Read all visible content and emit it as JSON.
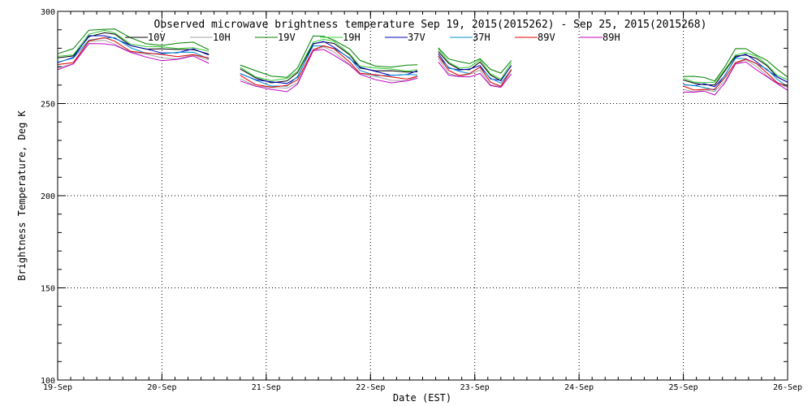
{
  "chart_data": {
    "type": "line",
    "title": "Observed microwave brightness temperature Sep 19, 2015(2015262) - Sep 25, 2015(2015268)",
    "xlabel": "Date (EST)",
    "ylabel": "Brightness Temperature, Deg K",
    "xlim": [
      0,
      7
    ],
    "ylim": [
      100,
      300
    ],
    "x_ticks": [
      {
        "x": 0,
        "label": "19-Sep"
      },
      {
        "x": 1,
        "label": "20-Sep"
      },
      {
        "x": 2,
        "label": "21-Sep"
      },
      {
        "x": 3,
        "label": "22-Sep"
      },
      {
        "x": 4,
        "label": "23-Sep"
      },
      {
        "x": 5,
        "label": "24-Sep"
      },
      {
        "x": 6,
        "label": "25-Sep"
      },
      {
        "x": 7,
        "label": "26-Sep"
      }
    ],
    "y_ticks": [
      {
        "y": 100,
        "label": "100"
      },
      {
        "y": 150,
        "label": "150"
      },
      {
        "y": 200,
        "label": "200"
      },
      {
        "y": 250,
        "label": "250"
      },
      {
        "y": 300,
        "label": "300"
      }
    ],
    "grid": true,
    "legend_position": "top",
    "base_curve": {
      "x": [
        0.0,
        0.15,
        0.3,
        0.45,
        0.55,
        0.7,
        0.85,
        1.0,
        1.15,
        1.3,
        1.45,
        1.75,
        1.9,
        2.05,
        2.2,
        2.3,
        2.45,
        2.55,
        2.65,
        2.8,
        2.9,
        3.05,
        3.2,
        3.35,
        3.45,
        3.65,
        3.75,
        3.85,
        3.95,
        4.05,
        4.15,
        4.25,
        4.35,
        6.0,
        6.1,
        6.2,
        6.3,
        6.4,
        6.5,
        6.6,
        6.7,
        6.8,
        6.9,
        7.0
      ],
      "y": [
        273,
        275,
        286,
        287,
        286,
        281,
        279,
        278,
        278,
        279,
        276,
        267,
        263,
        261,
        261,
        265,
        282,
        283,
        281,
        275,
        269,
        267,
        266,
        266,
        267,
        277,
        270,
        268,
        268,
        271,
        264,
        262,
        270,
        261,
        260,
        260,
        259,
        266,
        275,
        276,
        273,
        269,
        264,
        261
      ]
    },
    "gaps_after_x": [
      1.45,
      3.45,
      4.35
    ],
    "series": [
      {
        "name": "10V",
        "offset": 1,
        "color": "#000000"
      },
      {
        "name": "10H",
        "offset": -3,
        "color": "#a0a0a0"
      },
      {
        "name": "19V",
        "offset": 4,
        "color": "#008000"
      },
      {
        "name": "19H",
        "offset": 2,
        "color": "#30cc30"
      },
      {
        "name": "37V",
        "offset": 0,
        "color": "#0000c0"
      },
      {
        "name": "37H",
        "offset": -1,
        "color": "#0090d0"
      },
      {
        "name": "89V",
        "offset": -2,
        "color": "#e00000"
      },
      {
        "name": "89H",
        "offset": -4,
        "color": "#c000c0"
      }
    ]
  }
}
